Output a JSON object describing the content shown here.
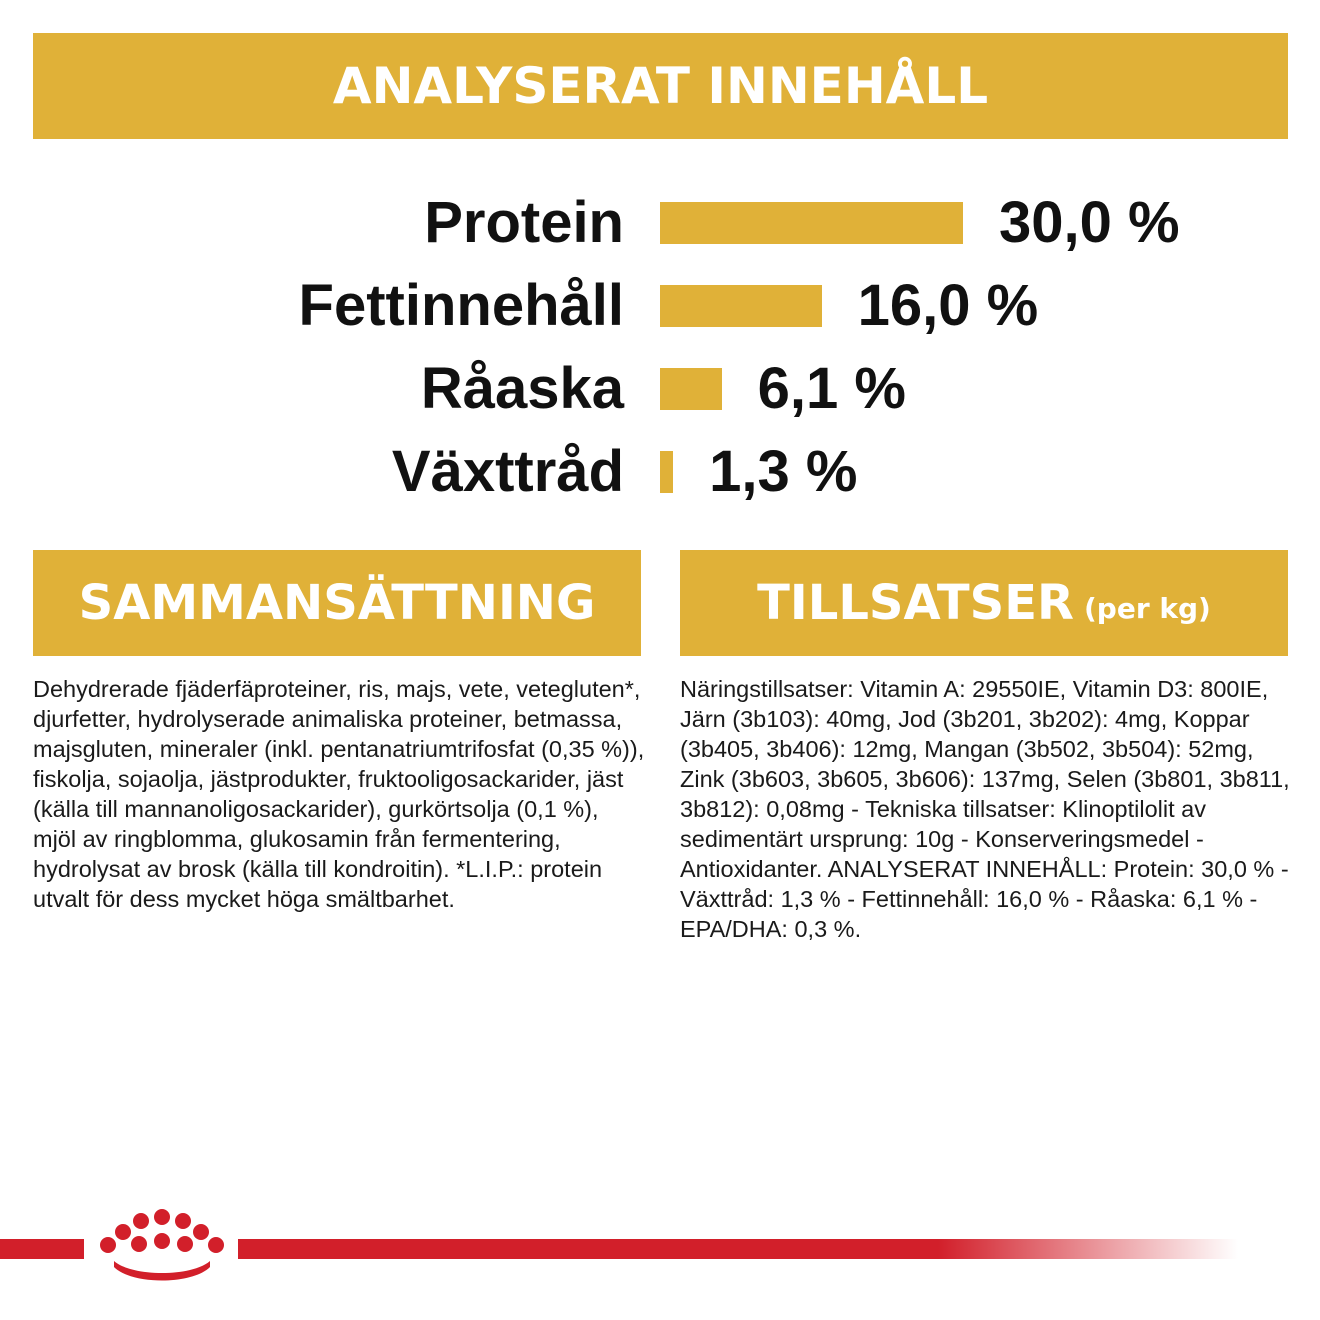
{
  "header": {
    "title": "ANALYSERAT INNEHÅLL"
  },
  "analysis": {
    "rows": [
      {
        "label": "Protein",
        "value_text": "30,0 %",
        "percent": 30.0
      },
      {
        "label": "Fettinnehåll",
        "value_text": "16,0 %",
        "percent": 16.0
      },
      {
        "label": "Råaska",
        "value_text": "6,1 %",
        "percent": 6.1
      },
      {
        "label": "Växttråd",
        "value_text": "1,3 %",
        "percent": 1.3
      }
    ]
  },
  "composition": {
    "title": "SAMMANSÄTTNING",
    "text": "Dehydrerade fjäderfäproteiner, ris, majs, vete, vetegluten*, djurfetter, hydrolyserade animaliska proteiner, betmassa, majsgluten, mineraler (inkl. pentanatriumtrifosfat (0,35 %)), fiskolja, sojaolja, jästprodukter, fruktooligosackarider, jäst (källa till mannanoligosackarider), gurkörtsolja (0,1 %), mjöl av ringblomma, glukosamin från fermentering, hydrolysat av brosk (källa till kondroitin). *L.I.P.: protein utvalt för dess mycket höga smältbarhet."
  },
  "additives": {
    "title": "TILLSATSER",
    "title_suffix": "(per kg)",
    "text": "Näringstillsatser: Vitamin A: 29550IE, Vitamin D3: 800IE, Järn (3b103): 40mg, Jod (3b201, 3b202): 4mg, Koppar (3b405, 3b406): 12mg, Mangan (3b502, 3b504): 52mg, Zink (3b603, 3b605, 3b606): 137mg, Selen (3b801, 3b811, 3b812): 0,08mg - Tekniska tillsatser: Klinoptilolit av sedimentärt ursprung: 10g - Konserveringsmedel - Antioxidanter. ANALYSERAT INNEHÅLL: Protein: 30,0 % - Växttråd: 1,3 % - Fettinnehåll: 16,0 % - Råaska: 6,1 % - EPA/DHA: 0,3 %."
  },
  "colors": {
    "accent": "#E0B138",
    "brand_red": "#D21F2A"
  },
  "footer": {
    "logo_icon": "crown-logo-icon"
  }
}
